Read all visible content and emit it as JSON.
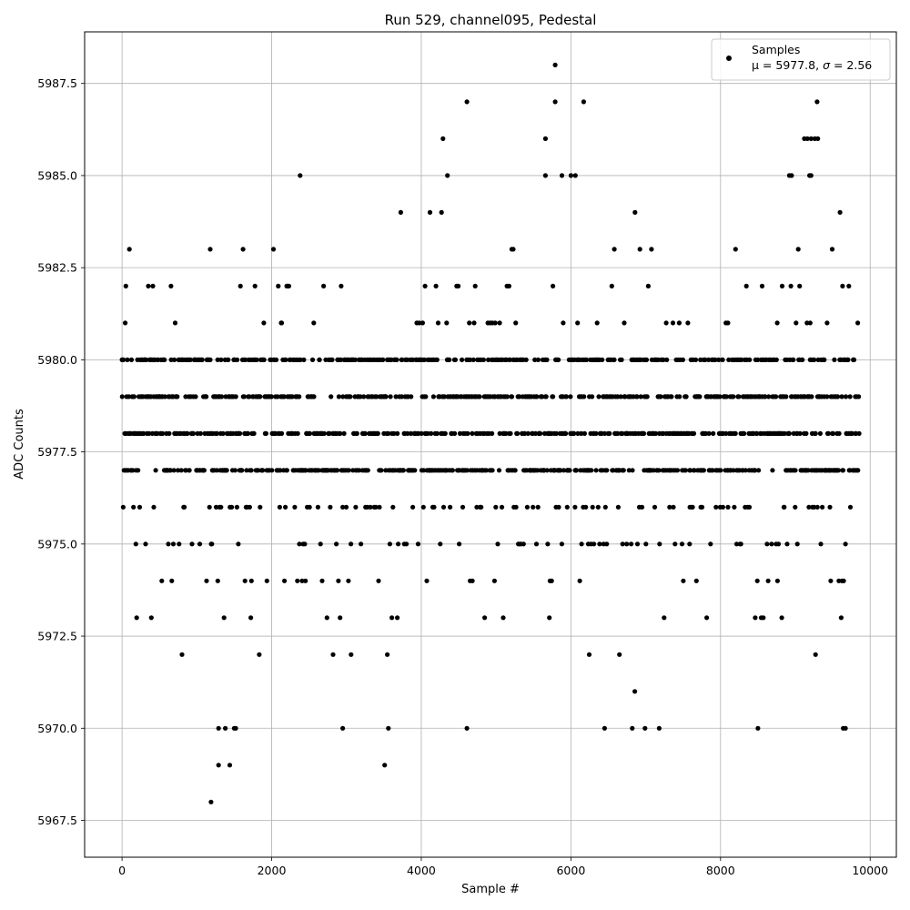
{
  "chart_data": {
    "type": "scatter",
    "title": "Run 529, channel095, Pedestal",
    "xlabel": "Sample #",
    "ylabel": "ADC Counts",
    "xlim": [
      -500,
      10350
    ],
    "ylim": [
      5966.5,
      5988.9
    ],
    "x_ticks": [
      0,
      2000,
      4000,
      6000,
      8000,
      10000
    ],
    "x_tick_labels": [
      "0",
      "2000",
      "4000",
      "6000",
      "8000",
      "10000"
    ],
    "y_ticks": [
      5967.5,
      5970.0,
      5972.5,
      5975.0,
      5977.5,
      5980.0,
      5982.5,
      5985.0,
      5987.5
    ],
    "y_tick_labels": [
      "5967.5",
      "5970.0",
      "5972.5",
      "5975.0",
      "5977.5",
      "5980.0",
      "5982.5",
      "5985.0",
      "5987.5"
    ],
    "grid": true,
    "legend_position": "top-right",
    "legend": {
      "label": "Samples",
      "stats_prefix": "μ = 5977.8, ",
      "stats_sigma": "σ",
      "stats_suffix": " = 2.56"
    },
    "series": [
      {
        "name": "Samples",
        "color": "#000000",
        "marker": "circle",
        "mean": 5977.8,
        "sigma": 2.56,
        "sample_count": 9850,
        "x_range": [
          0,
          9849
        ],
        "band_values": [
          5968,
          5969,
          5970,
          5971,
          5972,
          5973,
          5974,
          5975,
          5976,
          5977,
          5978,
          5979,
          5980,
          5981,
          5982,
          5983,
          5984,
          5985,
          5986,
          5987,
          5988
        ],
        "sparse_points": [
          {
            "x": 1190,
            "y": 5968
          },
          {
            "x": 1290,
            "y": 5969
          },
          {
            "x": 1440,
            "y": 5969
          },
          {
            "x": 3510,
            "y": 5969
          },
          {
            "x": 1290,
            "y": 5970
          },
          {
            "x": 1380,
            "y": 5970
          },
          {
            "x": 1500,
            "y": 5970
          },
          {
            "x": 1520,
            "y": 5970
          },
          {
            "x": 2950,
            "y": 5970
          },
          {
            "x": 3560,
            "y": 5970
          },
          {
            "x": 4610,
            "y": 5970
          },
          {
            "x": 6450,
            "y": 5970
          },
          {
            "x": 6820,
            "y": 5970
          },
          {
            "x": 6990,
            "y": 5970
          },
          {
            "x": 7180,
            "y": 5970
          },
          {
            "x": 8500,
            "y": 5970
          },
          {
            "x": 9640,
            "y": 5970
          },
          {
            "x": 9670,
            "y": 5970
          },
          {
            "x": 2380,
            "y": 5985
          },
          {
            "x": 4350,
            "y": 5985
          },
          {
            "x": 5660,
            "y": 5985
          },
          {
            "x": 5880,
            "y": 5985
          },
          {
            "x": 6000,
            "y": 5985
          },
          {
            "x": 6060,
            "y": 5985
          },
          {
            "x": 8920,
            "y": 5985
          },
          {
            "x": 8950,
            "y": 5985
          },
          {
            "x": 9190,
            "y": 5985
          },
          {
            "x": 9210,
            "y": 5985
          },
          {
            "x": 4290,
            "y": 5986
          },
          {
            "x": 5660,
            "y": 5986
          },
          {
            "x": 9120,
            "y": 5986
          },
          {
            "x": 9160,
            "y": 5986
          },
          {
            "x": 9210,
            "y": 5986
          },
          {
            "x": 9260,
            "y": 5986
          },
          {
            "x": 9300,
            "y": 5986
          },
          {
            "x": 4610,
            "y": 5987
          },
          {
            "x": 5790,
            "y": 5987
          },
          {
            "x": 6170,
            "y": 5987
          },
          {
            "x": 9290,
            "y": 5987
          },
          {
            "x": 5790,
            "y": 5988
          }
        ]
      }
    ]
  }
}
